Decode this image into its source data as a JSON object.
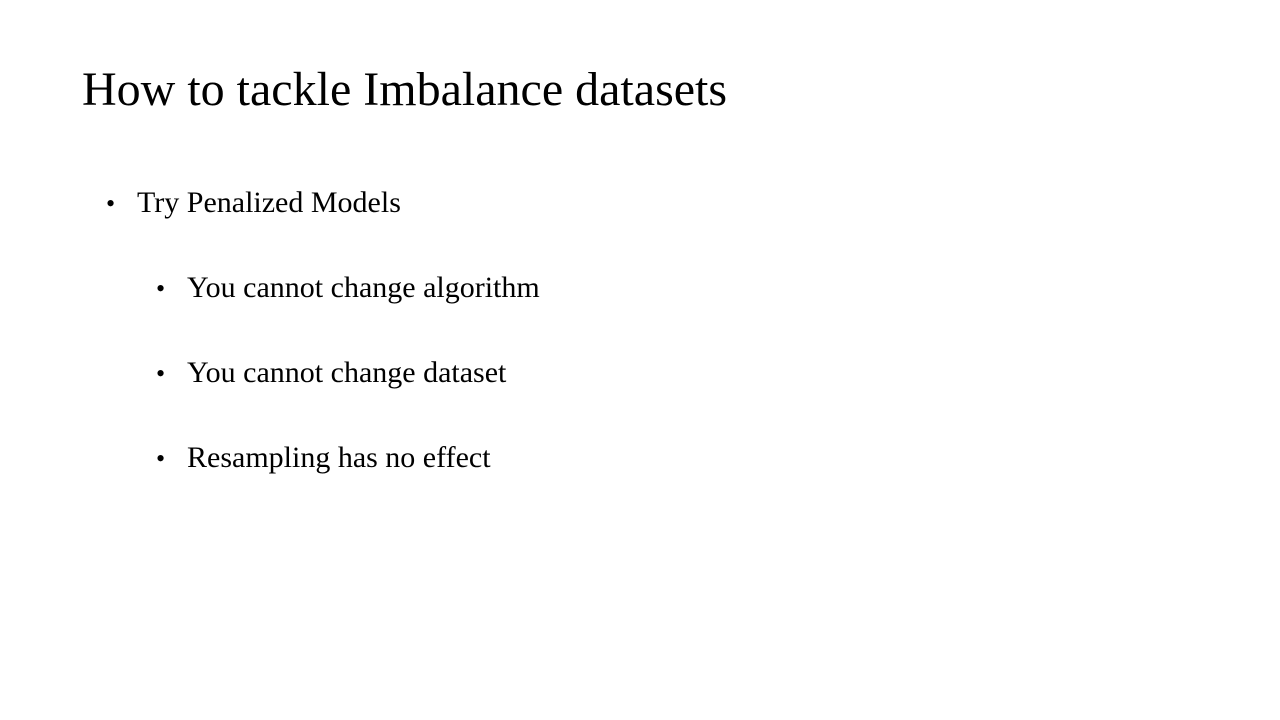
{
  "slide": {
    "title": "How to tackle Imbalance datasets",
    "bullet_glyph": "•",
    "main_bullet": "Try Penalized Models",
    "sub_bullets": [
      "You cannot change algorithm",
      "You cannot change dataset",
      "Resampling has no effect"
    ]
  }
}
